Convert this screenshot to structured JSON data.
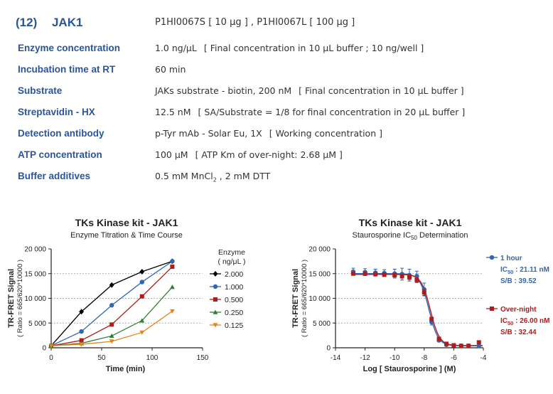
{
  "header": {
    "number": "(12)",
    "name": "JAK1",
    "catalog": "P1HI0067S [ 10 μg ] , P1HI0067L [ 100 μg ]"
  },
  "conditions": [
    {
      "label": "Enzyme concentration",
      "value": "1.0 ng/μL",
      "note": "[ Final concentration in 10 μL buffer ; 10 ng/well ]"
    },
    {
      "label": "Incubation time at RT",
      "value": "60 min",
      "note": ""
    },
    {
      "label": "Substrate",
      "value": "JAKs substrate - biotin, 200 nM",
      "note": "[ Final concentration in 10 μL buffer ]"
    },
    {
      "label": "Streptavidin - HX",
      "value": "12.5 nM",
      "note": "[ SA/Substrate = 1/8 for final concentration in 20 μL buffer ]"
    },
    {
      "label": "Detection antibody",
      "value": "p-Tyr mAb - Solar Eu, 1X",
      "note": "[ Working concentration ]"
    },
    {
      "label": "ATP concentration",
      "value": "100 μM",
      "note": "[ ATP Km of over-night: 2.68 μM ]"
    },
    {
      "label": "Buffer additives",
      "value_part1": "0.5 mM MnCl",
      "value_sub": "2",
      "value_part2": " , 2 mM DTT"
    }
  ],
  "chart_data": [
    {
      "type": "line",
      "title": "TKs Kinase kit  -  JAK1",
      "subtitle": "Enzyme Titration & Time Course",
      "xlabel": "Time  (min)",
      "ylabel": "TR-FRET Signal",
      "ylabel_sub": "( Ratio = 665/620*10000 )",
      "xlim": [
        0,
        150
      ],
      "ylim": [
        0,
        20000
      ],
      "xticks": [
        "0",
        "50",
        "100",
        "150"
      ],
      "yticks": [
        "0",
        "5 000",
        "10 000",
        "15 000",
        "20 000"
      ],
      "legend_title": "Enzyme",
      "legend_unit": "( ng/μL )",
      "x": [
        0,
        30,
        60,
        90,
        120
      ],
      "series": [
        {
          "name": "2.000",
          "color": "#000000",
          "marker": "diamond",
          "values": [
            400,
            7300,
            12700,
            15400,
            17500
          ]
        },
        {
          "name": "1.000",
          "color": "#2f67b1",
          "marker": "circle",
          "values": [
            400,
            3300,
            8600,
            13300,
            17500
          ]
        },
        {
          "name": "0.500",
          "color": "#b01c1c",
          "marker": "square",
          "values": [
            400,
            1500,
            4700,
            10400,
            16400
          ]
        },
        {
          "name": "0.250",
          "color": "#2f7d32",
          "marker": "triangle",
          "values": [
            400,
            900,
            2400,
            5500,
            12300
          ]
        },
        {
          "name": "0.125",
          "color": "#e0861c",
          "marker": "triangle-down",
          "values": [
            400,
            700,
            1300,
            3100,
            7400
          ]
        }
      ]
    },
    {
      "type": "scatter",
      "title": "TKs Kinase kit  -  JAK1",
      "subtitle_pre": "Staurosporine IC",
      "subtitle_sub": "50",
      "subtitle_post": " Determination",
      "xlabel": "Log [ Staurosporine ]  (M)",
      "ylabel": "TR-FRET Signal",
      "ylabel_sub": "( Ratio = 665/620*10000 )",
      "xlim": [
        -14,
        -4
      ],
      "ylim": [
        0,
        20000
      ],
      "xticks": [
        "-14",
        "-12",
        "-10",
        "-8",
        "-6",
        "-4"
      ],
      "yticks": [
        "0",
        "5 000",
        "10 000",
        "15 000",
        "20 000"
      ],
      "x": [
        -12.8,
        -12.0,
        -11.3,
        -10.7,
        -10.0,
        -9.5,
        -9.0,
        -8.5,
        -8.0,
        -7.5,
        -7.0,
        -6.5,
        -6.0,
        -5.5,
        -5.0,
        -4.3
      ],
      "series": [
        {
          "name": "1 hour",
          "color": "#2f67b1",
          "marker": "circle",
          "ic50_label": "IC",
          "ic50_sub": "50",
          "ic50_value": " : 21.11 nM",
          "sb": "S/B : 39.52",
          "values": [
            15400,
            15300,
            15200,
            15100,
            15000,
            14900,
            14700,
            14500,
            11800,
            5200,
            1500,
            600,
            500,
            400,
            400,
            400
          ],
          "errors": [
            700,
            700,
            700,
            700,
            900,
            1200,
            1200,
            1000,
            1300,
            600,
            300,
            200,
            150,
            150,
            150,
            150
          ]
        },
        {
          "name": "Over-night",
          "color": "#b01c1c",
          "marker": "square",
          "ic50_label": "IC",
          "ic50_sub": "50",
          "ic50_value": " : 26.00 nM",
          "sb": "S/B : 32.44",
          "values": [
            15000,
            15000,
            14900,
            14800,
            14700,
            14500,
            14300,
            13700,
            11200,
            5800,
            1800,
            800,
            500,
            400,
            400,
            1100
          ],
          "errors": [
            300,
            300,
            300,
            300,
            400,
            400,
            500,
            500,
            600,
            400,
            200,
            150,
            150,
            150,
            150,
            200
          ]
        }
      ]
    }
  ]
}
